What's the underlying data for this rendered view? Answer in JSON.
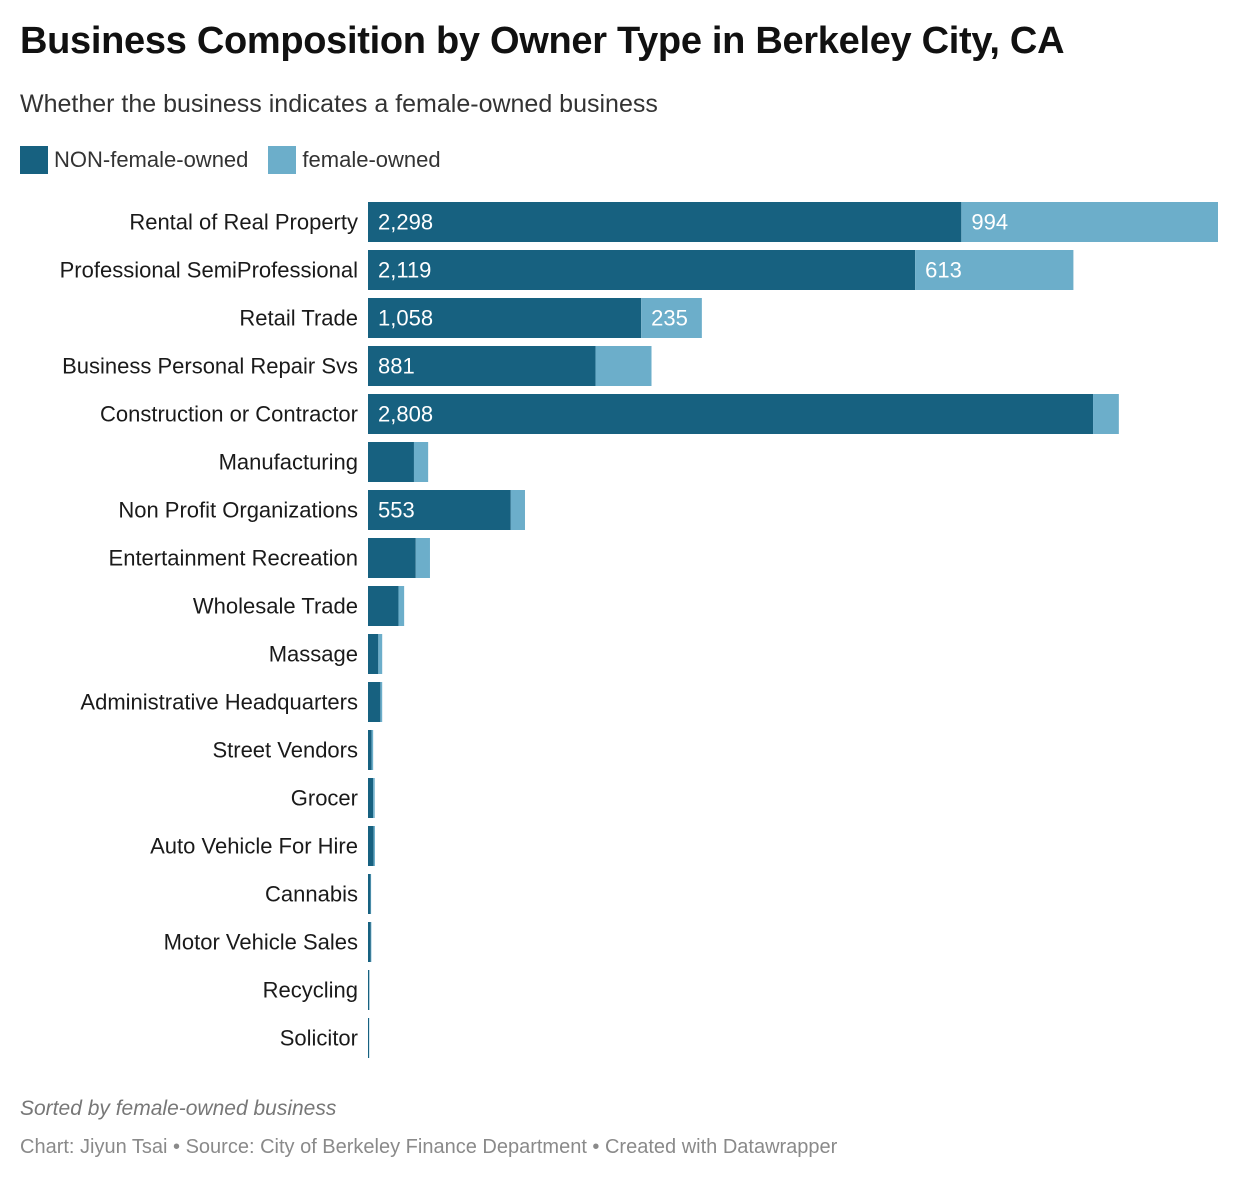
{
  "chart_data": {
    "type": "bar",
    "orientation": "horizontal",
    "stacked": true,
    "title": "Business Composition by Owner Type in Berkeley City, CA",
    "subtitle": "Whether the business indicates a female-owned business",
    "categories": [
      "Rental of Real Property",
      "Professional SemiProfessional",
      "Retail Trade",
      "Business Personal Repair Svs",
      "Construction or Contractor",
      "Manufacturing",
      "Non Profit Organizations",
      "Entertainment Recreation",
      "Wholesale Trade",
      "Massage",
      "Administrative Headquarters",
      "Street Vendors",
      "Grocer",
      "Auto Vehicle For Hire",
      "Cannabis",
      "Motor Vehicle Sales",
      "Recycling",
      "Solicitor"
    ],
    "series": [
      {
        "name": "NON-female-owned",
        "color": "#176180",
        "values": [
          2298,
          2119,
          1058,
          881,
          2808,
          178,
          553,
          185,
          118,
          40,
          48,
          14,
          20,
          22,
          10,
          11,
          5,
          4
        ],
        "labels": [
          "2,298",
          "2,119",
          "1,058",
          "881",
          "2,808",
          "",
          "553",
          "",
          "",
          "",
          "",
          "",
          "",
          "",
          "",
          "",
          "",
          ""
        ]
      },
      {
        "name": "female-owned",
        "color": "#6caeca",
        "values": [
          994,
          613,
          235,
          217,
          100,
          55,
          55,
          55,
          22,
          15,
          7,
          6,
          6,
          5,
          2,
          2,
          1,
          1
        ],
        "labels": [
          "994",
          "613",
          "235",
          "",
          "",
          "",
          "",
          "",
          "",
          "",
          "",
          "",
          "",
          "",
          "",
          "",
          "",
          ""
        ]
      }
    ],
    "xlim": [
      0,
      3292
    ],
    "grid": false,
    "legend_position": "top-left",
    "notes": "Sorted by female-owned business",
    "footer": "Chart: Jiyun Tsai • Source: City of Berkeley Finance Department • Created with Datawrapper"
  }
}
